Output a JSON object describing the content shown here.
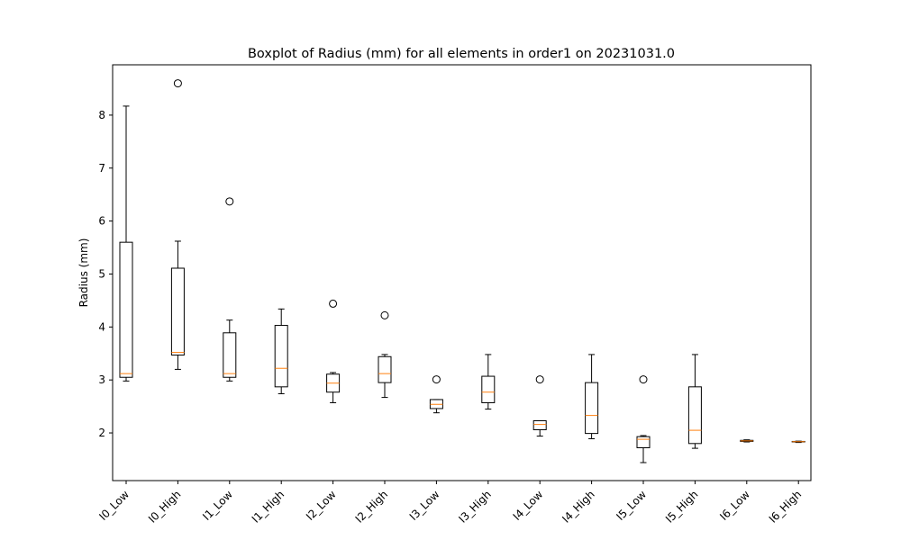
{
  "chart_data": {
    "type": "boxplot",
    "title": "Boxplot of Radius (mm) for all elements in order1 on 20231031.0",
    "xlabel": "",
    "ylabel": "Radius (mm)",
    "ylim": [
      1.1,
      8.95
    ],
    "yticks": [
      2,
      3,
      4,
      5,
      6,
      7,
      8
    ],
    "grid": false,
    "colors": {
      "box": "#000000",
      "median": "#ff7f0e",
      "outlier": "#000000"
    },
    "categories": [
      "I0_Low",
      "I0_High",
      "I1_Low",
      "I1_High",
      "I2_Low",
      "I2_High",
      "I3_Low",
      "I3_High",
      "I4_Low",
      "I4_High",
      "I5_Low",
      "I5_High",
      "I6_Low",
      "I6_High"
    ],
    "boxes": [
      {
        "whisker_low": 2.98,
        "q1": 3.05,
        "median": 3.12,
        "q3": 5.6,
        "whisker_high": 8.17,
        "outliers": []
      },
      {
        "whisker_low": 3.2,
        "q1": 3.47,
        "median": 3.52,
        "q3": 5.11,
        "whisker_high": 5.62,
        "outliers": [
          8.6
        ]
      },
      {
        "whisker_low": 2.98,
        "q1": 3.05,
        "median": 3.12,
        "q3": 3.89,
        "whisker_high": 4.13,
        "outliers": [
          6.37
        ]
      },
      {
        "whisker_low": 2.74,
        "q1": 2.87,
        "median": 3.22,
        "q3": 4.03,
        "whisker_high": 4.34,
        "outliers": []
      },
      {
        "whisker_low": 2.57,
        "q1": 2.77,
        "median": 2.94,
        "q3": 3.11,
        "whisker_high": 3.14,
        "outliers": [
          4.44
        ]
      },
      {
        "whisker_low": 2.67,
        "q1": 2.95,
        "median": 3.12,
        "q3": 3.44,
        "whisker_high": 3.48,
        "outliers": [
          4.22
        ]
      },
      {
        "whisker_low": 2.38,
        "q1": 2.46,
        "median": 2.54,
        "q3": 2.63,
        "whisker_high": 2.63,
        "outliers": [
          3.01
        ]
      },
      {
        "whisker_low": 2.45,
        "q1": 2.57,
        "median": 2.77,
        "q3": 3.07,
        "whisker_high": 3.48,
        "outliers": []
      },
      {
        "whisker_low": 1.94,
        "q1": 2.06,
        "median": 2.16,
        "q3": 2.23,
        "whisker_high": 2.23,
        "outliers": [
          3.01
        ]
      },
      {
        "whisker_low": 1.89,
        "q1": 1.99,
        "median": 2.33,
        "q3": 2.95,
        "whisker_high": 3.48,
        "outliers": []
      },
      {
        "whisker_low": 1.44,
        "q1": 1.72,
        "median": 1.88,
        "q3": 1.93,
        "whisker_high": 1.95,
        "outliers": [
          3.01
        ]
      },
      {
        "whisker_low": 1.71,
        "q1": 1.8,
        "median": 2.05,
        "q3": 2.87,
        "whisker_high": 3.48,
        "outliers": []
      },
      {
        "whisker_low": 1.83,
        "q1": 1.84,
        "median": 1.85,
        "q3": 1.86,
        "whisker_high": 1.87,
        "outliers": []
      },
      {
        "whisker_low": 1.82,
        "q1": 1.83,
        "median": 1.835,
        "q3": 1.84,
        "whisker_high": 1.845,
        "outliers": []
      }
    ]
  }
}
